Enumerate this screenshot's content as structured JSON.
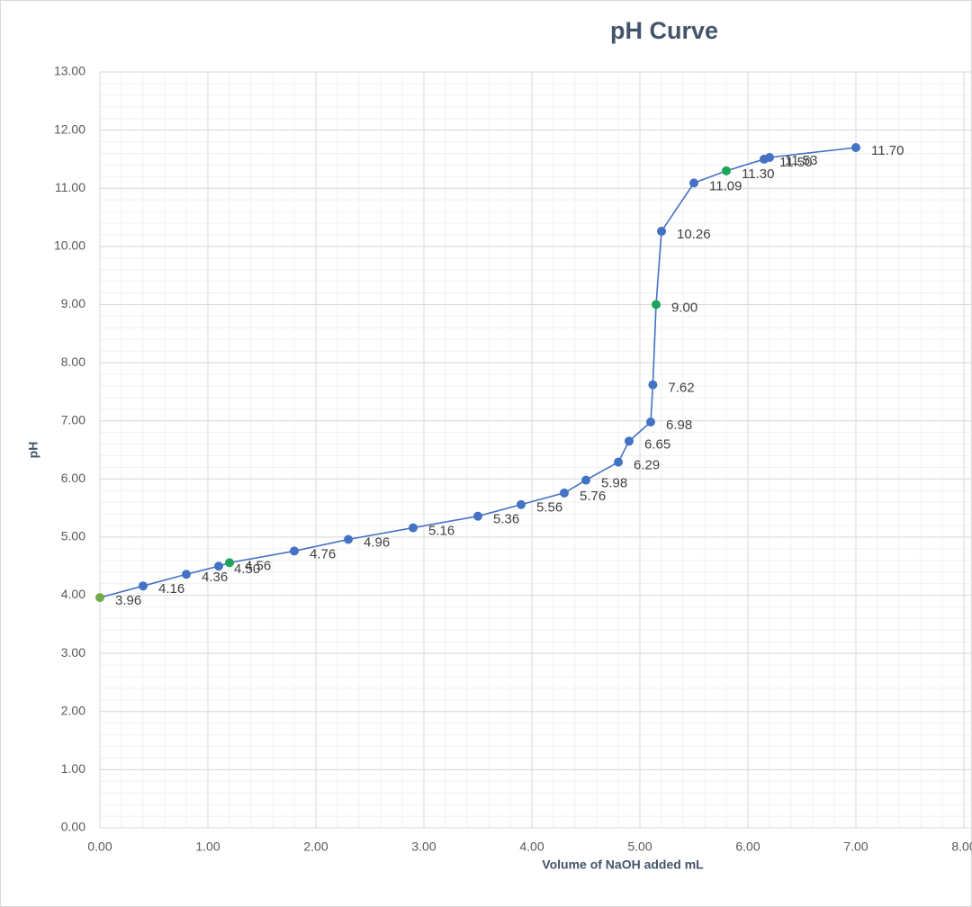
{
  "chart_data": {
    "type": "scatter",
    "title": "pH Curve",
    "x_label": "Volume of NaOH added mL",
    "y_label": "pH",
    "xlim": [
      0,
      8
    ],
    "ylim": [
      0,
      13
    ],
    "xticks": [
      {
        "value": 0,
        "label": "0.00"
      },
      {
        "value": 1,
        "label": "1.00"
      },
      {
        "value": 2,
        "label": "2.00"
      },
      {
        "value": 3,
        "label": "3.00"
      },
      {
        "value": 4,
        "label": "4.00"
      },
      {
        "value": 5,
        "label": "5.00"
      },
      {
        "value": 6,
        "label": "6.00"
      },
      {
        "value": 7,
        "label": "7.00"
      },
      {
        "value": 8,
        "label": "8.00"
      }
    ],
    "yticks": [
      {
        "value": 0,
        "label": "0.00"
      },
      {
        "value": 1,
        "label": "1.00"
      },
      {
        "value": 2,
        "label": "2.00"
      },
      {
        "value": 3,
        "label": "3.00"
      },
      {
        "value": 4,
        "label": "4.00"
      },
      {
        "value": 5,
        "label": "5.00"
      },
      {
        "value": 6,
        "label": "6.00"
      },
      {
        "value": 7,
        "label": "7.00"
      },
      {
        "value": 8,
        "label": "8.00"
      },
      {
        "value": 9,
        "label": "9.00"
      },
      {
        "value": 10,
        "label": "10.00"
      },
      {
        "value": 11,
        "label": "11.00"
      },
      {
        "value": 12,
        "label": "12.00"
      },
      {
        "value": 13,
        "label": "13.00"
      }
    ],
    "grid": true,
    "minor_grid": true,
    "series": [
      {
        "color": "#4472c4",
        "x": [
          0.0,
          0.4,
          0.8,
          1.1,
          1.2,
          1.8,
          2.3,
          2.9,
          3.5,
          3.9,
          4.3,
          4.5,
          4.8,
          4.9,
          5.1,
          5.12,
          5.15,
          5.2,
          5.5,
          5.8,
          6.15,
          6.2,
          7.0
        ],
        "values": [
          3.96,
          4.16,
          4.36,
          4.5,
          4.56,
          4.76,
          4.96,
          5.16,
          5.36,
          5.56,
          5.76,
          5.98,
          6.29,
          6.65,
          6.98,
          7.62,
          9.0,
          10.26,
          11.09,
          11.3,
          11.5,
          11.53,
          11.7
        ],
        "value_labels": [
          "3.96",
          "4.16",
          "4.36",
          "4.50",
          "4.56",
          "4.76",
          "4.96",
          "5.16",
          "5.36",
          "5.56",
          "5.76",
          "5.98",
          "6.29",
          "6.65",
          "6.98",
          "7.62",
          "9.00",
          "10.26",
          "11.09",
          "11.30",
          "11.50",
          "11.53",
          "11.70"
        ],
        "point_colors": [
          "#70ad47",
          "#4472c4",
          "#4472c4",
          "#4472c4",
          "#1ea35a",
          "#4472c4",
          "#4472c4",
          "#4472c4",
          "#4472c4",
          "#4472c4",
          "#4472c4",
          "#4472c4",
          "#4472c4",
          "#4472c4",
          "#4472c4",
          "#4472c4",
          "#1ea35a",
          "#4472c4",
          "#4472c4",
          "#1ea35a",
          "#4472c4",
          "#4472c4",
          "#4472c4"
        ]
      }
    ]
  }
}
